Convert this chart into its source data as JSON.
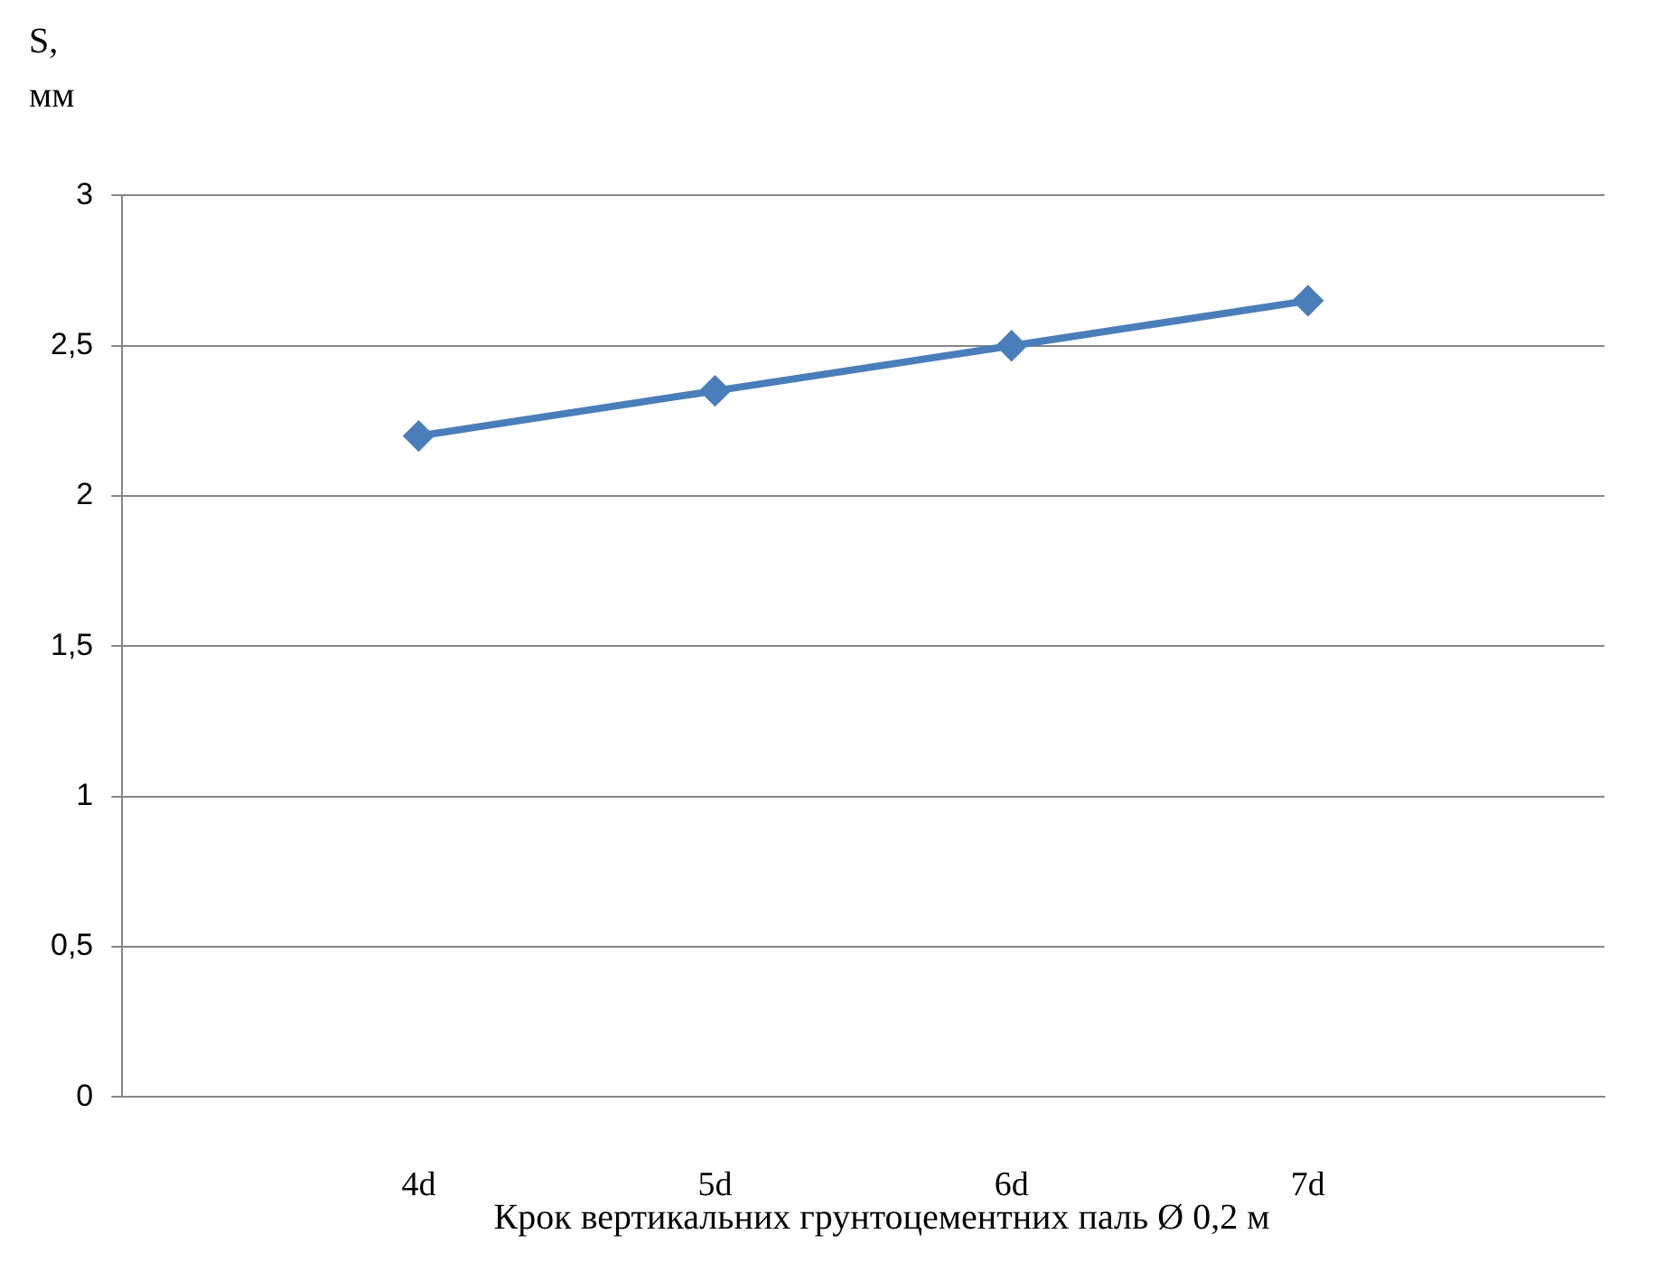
{
  "chart_data": {
    "type": "line",
    "ylabel": "S,\nмм",
    "xlabel": "Крок вертикальних грунтоцементних паль Ø 0,2 м",
    "categories": [
      null,
      "4d",
      "5d",
      "6d",
      "7d",
      null
    ],
    "series": [
      {
        "color": "#4a7ebb",
        "values": [
          null,
          2.2,
          2.35,
          2.5,
          2.65,
          null
        ]
      }
    ],
    "ylim": [
      0,
      3
    ],
    "yticks": [
      0,
      {
        "value": 0.5,
        "label": "0,5"
      },
      1,
      {
        "value": 1.5,
        "label": "1,5"
      },
      2,
      {
        "value": 2.5,
        "label": "2,5"
      },
      3
    ],
    "grid": "y",
    "legend": false,
    "marker": "diamond",
    "line_style": "solid"
  }
}
